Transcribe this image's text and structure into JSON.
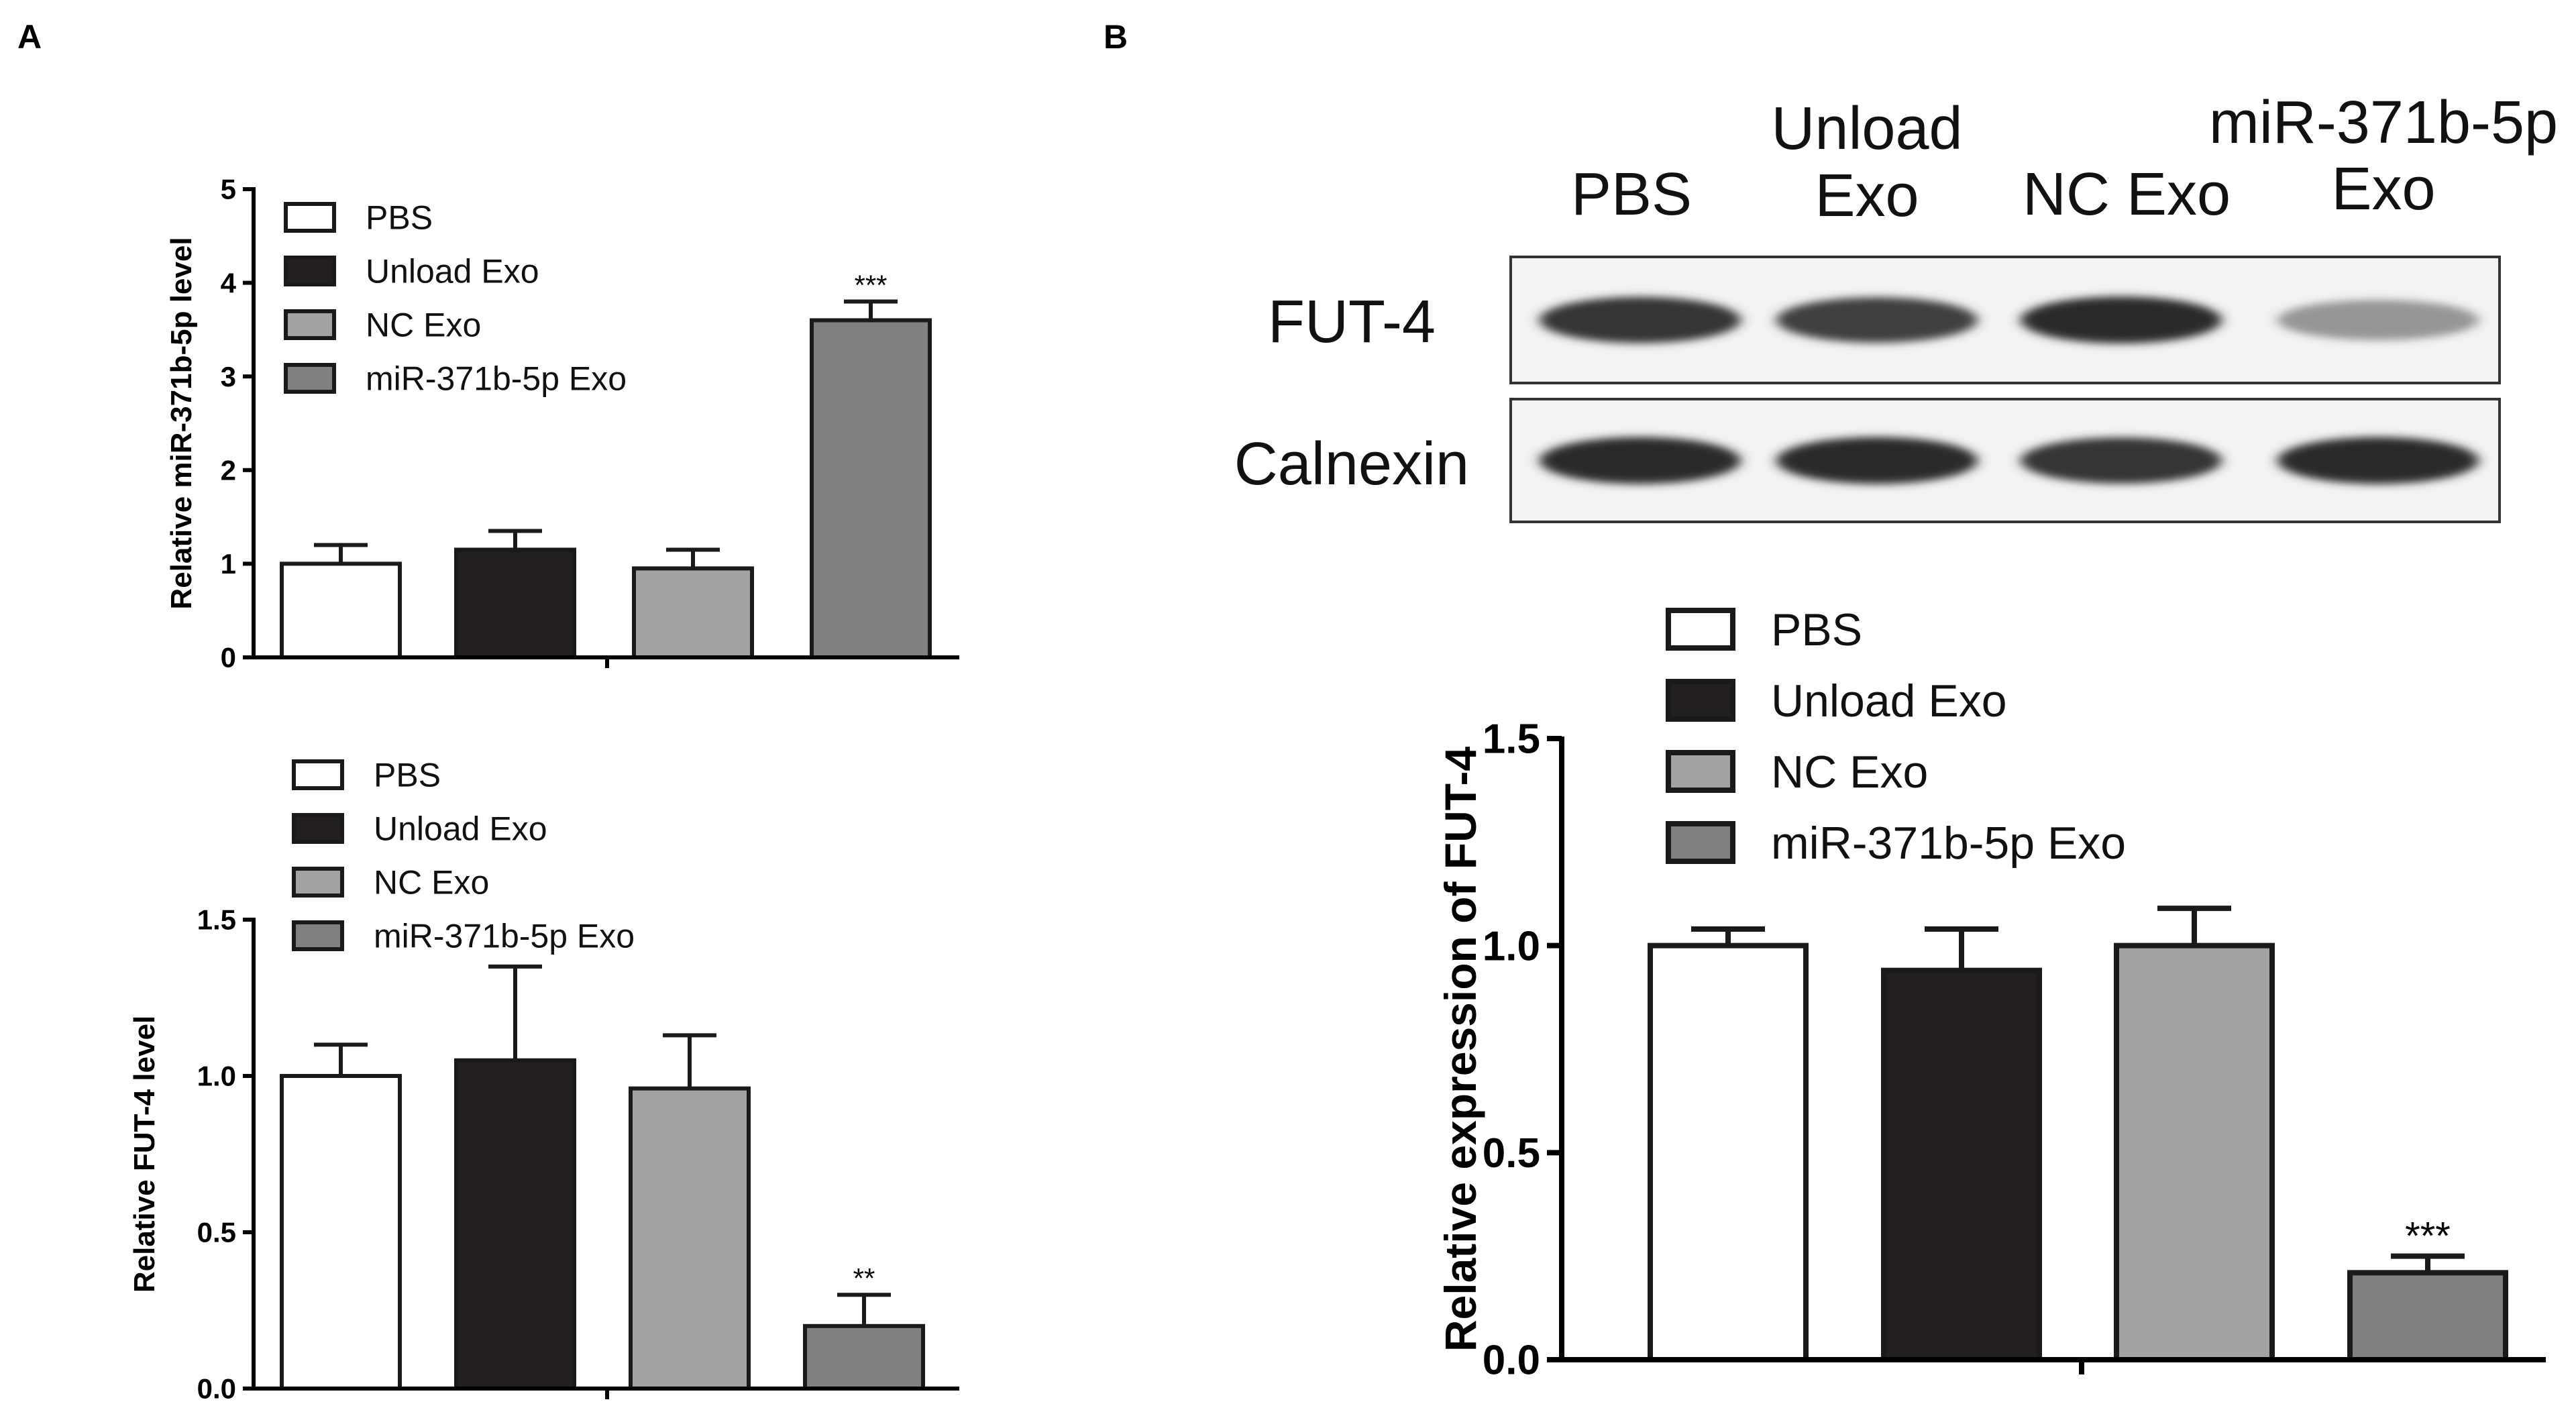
{
  "panels": {
    "a": "A",
    "b": "B"
  },
  "colors": {
    "PBS": "#ffffff",
    "Unload Exo": "#231f20",
    "NC Exo": "#a3a3a3",
    "miR-371b-5p Exo": "#808080",
    "outline": "#1a1a1a"
  },
  "blot": {
    "lanes": [
      [
        "PBS"
      ],
      [
        "Unload",
        "Exo"
      ],
      [
        "NC Exo"
      ],
      [
        "miR-371b-5p",
        "Exo"
      ]
    ],
    "rows": [
      {
        "label": "FUT-4",
        "intensity": [
          0.85,
          0.8,
          0.9,
          0.4
        ]
      },
      {
        "label": "Calnexin",
        "intensity": [
          0.9,
          0.9,
          0.85,
          0.9
        ]
      }
    ]
  },
  "chart_data": [
    {
      "id": "A-top",
      "type": "bar",
      "categories": [
        "PBS",
        "Unload Exo",
        "NC Exo",
        "miR-371b-5p Exo"
      ],
      "values": [
        1.0,
        1.15,
        0.95,
        3.6
      ],
      "errors": [
        0.2,
        0.2,
        0.2,
        0.2
      ],
      "significance": [
        "",
        "",
        "",
        "***"
      ],
      "ylabel": "Relative miR-371b-5p level",
      "ylim": [
        0,
        5
      ],
      "yticks": [
        0,
        1,
        2,
        3,
        4,
        5
      ],
      "ytick_labels": [
        "0",
        "1",
        "2",
        "3",
        "4",
        "5"
      ],
      "legend": [
        "PBS",
        "Unload Exo",
        "NC Exo",
        "miR-371b-5p Exo"
      ],
      "legend_position": "top-left",
      "grid": false
    },
    {
      "id": "A-bottom",
      "type": "bar",
      "categories": [
        "PBS",
        "Unload Exo",
        "NC Exo",
        "miR-371b-5p Exo"
      ],
      "values": [
        1.0,
        1.05,
        0.96,
        0.2
      ],
      "errors": [
        0.1,
        0.3,
        0.17,
        0.1
      ],
      "significance": [
        "",
        "",
        "",
        "**"
      ],
      "ylabel": "Relative FUT-4 level",
      "ylim": [
        0,
        1.5
      ],
      "yticks": [
        0,
        0.5,
        1.0,
        1.5
      ],
      "ytick_labels": [
        "0.0",
        "0.5",
        "1.0",
        "1.5"
      ],
      "legend": [
        "PBS",
        "Unload Exo",
        "NC Exo",
        "miR-371b-5p Exo"
      ],
      "legend_position": "top-left",
      "grid": false
    },
    {
      "id": "B",
      "type": "bar",
      "categories": [
        "PBS",
        "Unload Exo",
        "NC Exo",
        "miR-371b-5p Exo"
      ],
      "values": [
        1.0,
        0.94,
        1.0,
        0.21
      ],
      "errors": [
        0.04,
        0.1,
        0.09,
        0.04
      ],
      "significance": [
        "",
        "",
        "",
        "***"
      ],
      "ylabel": "Relative expression of FUT-4",
      "ylim": [
        0,
        1.5
      ],
      "yticks": [
        0,
        0.5,
        1.0,
        1.5
      ],
      "ytick_labels": [
        "0.0",
        "0.5",
        "1.0",
        "1.5"
      ],
      "legend": [
        "PBS",
        "Unload Exo",
        "NC Exo",
        "miR-371b-5p Exo"
      ],
      "legend_position": "top-left",
      "grid": false
    }
  ]
}
